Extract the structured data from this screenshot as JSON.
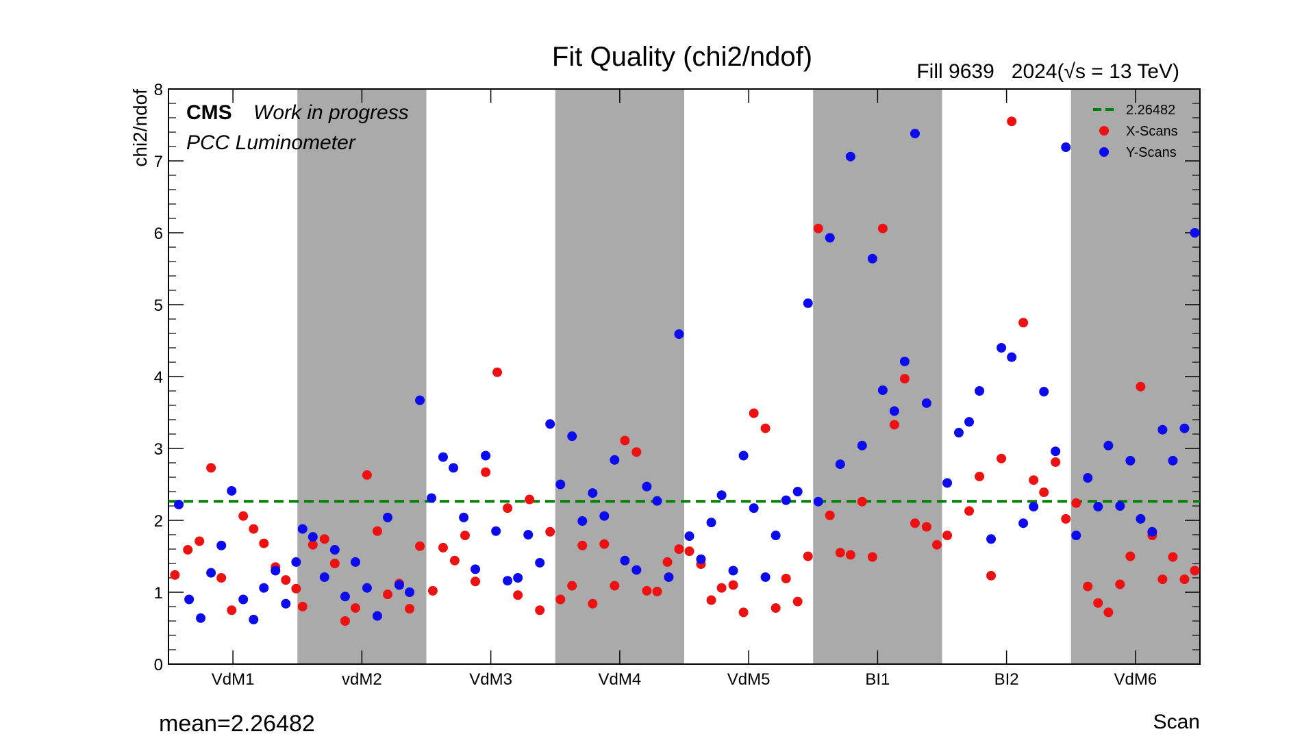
{
  "chart_data": {
    "type": "scatter",
    "title": "Fit Quality (chi2/ndof)",
    "top_right_label": "Fill 9639   2024(√s = 13 TeV)",
    "experiment_label": "CMS",
    "experiment_sublabel": "Work in progress",
    "detector_label": "PCC Luminometer",
    "xlabel": "Scan",
    "ylabel": "chi2/ndof",
    "ylim": [
      0,
      8
    ],
    "yticks": [
      0,
      1,
      2,
      3,
      4,
      5,
      6,
      7,
      8
    ],
    "xlim": [
      0,
      8
    ],
    "categories": [
      "VdM1",
      "vdM2",
      "VdM3",
      "VdM4",
      "VdM5",
      "BI1",
      "BI2",
      "VdM6"
    ],
    "shaded_categories": [
      1,
      3,
      5,
      7
    ],
    "mean_label": "mean=2.26482",
    "reference_line": {
      "name": "2.26482",
      "value": 2.26482,
      "style": "dashed",
      "color": "#008000"
    },
    "legend_position": "top-right",
    "grid": false,
    "series": [
      {
        "name": "X-Scans",
        "color": "#ee1111",
        "points": [
          [
            0.05,
            1.24
          ],
          [
            0.15,
            1.59
          ],
          [
            0.24,
            1.71
          ],
          [
            0.33,
            2.73
          ],
          [
            0.41,
            1.2
          ],
          [
            0.49,
            0.75
          ],
          [
            0.58,
            2.06
          ],
          [
            0.66,
            1.88
          ],
          [
            0.74,
            1.68
          ],
          [
            0.83,
            1.35
          ],
          [
            0.91,
            1.17
          ],
          [
            0.99,
            1.05
          ],
          [
            1.04,
            0.8
          ],
          [
            1.12,
            1.66
          ],
          [
            1.21,
            1.74
          ],
          [
            1.29,
            1.4
          ],
          [
            1.37,
            0.6
          ],
          [
            1.45,
            0.78
          ],
          [
            1.54,
            2.63
          ],
          [
            1.62,
            1.85
          ],
          [
            1.7,
            0.97
          ],
          [
            1.79,
            1.12
          ],
          [
            1.87,
            0.77
          ],
          [
            1.95,
            1.64
          ],
          [
            2.05,
            1.02
          ],
          [
            2.13,
            1.62
          ],
          [
            2.22,
            1.44
          ],
          [
            2.3,
            1.79
          ],
          [
            2.38,
            1.15
          ],
          [
            2.46,
            2.67
          ],
          [
            2.55,
            4.06
          ],
          [
            2.63,
            2.17
          ],
          [
            2.71,
            0.96
          ],
          [
            2.8,
            2.29
          ],
          [
            2.88,
            0.75
          ],
          [
            2.96,
            1.84
          ],
          [
            3.04,
            0.9
          ],
          [
            3.13,
            1.09
          ],
          [
            3.21,
            1.65
          ],
          [
            3.29,
            0.84
          ],
          [
            3.38,
            1.67
          ],
          [
            3.46,
            1.09
          ],
          [
            3.54,
            3.11
          ],
          [
            3.63,
            2.95
          ],
          [
            3.71,
            1.02
          ],
          [
            3.79,
            1.01
          ],
          [
            3.87,
            1.42
          ],
          [
            3.96,
            1.6
          ],
          [
            4.04,
            1.57
          ],
          [
            4.13,
            1.39
          ],
          [
            4.21,
            0.89
          ],
          [
            4.29,
            1.06
          ],
          [
            4.38,
            1.1
          ],
          [
            4.46,
            0.72
          ],
          [
            4.54,
            3.49
          ],
          [
            4.63,
            3.28
          ],
          [
            4.71,
            0.78
          ],
          [
            4.79,
            1.19
          ],
          [
            4.88,
            0.87
          ],
          [
            4.96,
            1.5
          ],
          [
            5.04,
            6.06
          ],
          [
            5.13,
            2.07
          ],
          [
            5.21,
            1.55
          ],
          [
            5.29,
            1.52
          ],
          [
            5.38,
            2.26
          ],
          [
            5.46,
            1.49
          ],
          [
            5.54,
            6.06
          ],
          [
            5.63,
            3.33
          ],
          [
            5.71,
            3.97
          ],
          [
            5.79,
            1.96
          ],
          [
            5.88,
            1.91
          ],
          [
            5.96,
            1.66
          ],
          [
            6.04,
            1.79
          ],
          [
            6.21,
            2.13
          ],
          [
            6.29,
            2.61
          ],
          [
            6.38,
            1.23
          ],
          [
            6.46,
            2.86
          ],
          [
            6.54,
            7.55
          ],
          [
            6.63,
            4.75
          ],
          [
            6.71,
            2.56
          ],
          [
            6.79,
            2.39
          ],
          [
            6.88,
            2.81
          ],
          [
            6.96,
            2.02
          ],
          [
            7.04,
            2.24
          ],
          [
            7.13,
            1.08
          ],
          [
            7.21,
            0.85
          ],
          [
            7.29,
            0.72
          ],
          [
            7.38,
            1.11
          ],
          [
            7.46,
            1.5
          ],
          [
            7.54,
            3.86
          ],
          [
            7.63,
            1.79
          ],
          [
            7.71,
            1.18
          ],
          [
            7.79,
            1.49
          ],
          [
            7.88,
            1.18
          ],
          [
            7.96,
            1.3
          ]
        ]
      },
      {
        "name": "Y-Scans",
        "color": "#0b0bee",
        "points": [
          [
            0.08,
            2.22
          ],
          [
            0.16,
            0.9
          ],
          [
            0.25,
            0.64
          ],
          [
            0.33,
            1.27
          ],
          [
            0.41,
            1.65
          ],
          [
            0.49,
            2.41
          ],
          [
            0.58,
            0.9
          ],
          [
            0.66,
            0.62
          ],
          [
            0.74,
            1.06
          ],
          [
            0.83,
            1.3
          ],
          [
            0.91,
            0.84
          ],
          [
            0.99,
            1.42
          ],
          [
            1.04,
            1.88
          ],
          [
            1.12,
            1.77
          ],
          [
            1.21,
            1.21
          ],
          [
            1.29,
            1.59
          ],
          [
            1.37,
            0.94
          ],
          [
            1.45,
            1.42
          ],
          [
            1.54,
            1.06
          ],
          [
            1.62,
            0.67
          ],
          [
            1.7,
            2.04
          ],
          [
            1.79,
            1.1
          ],
          [
            1.87,
            1.0
          ],
          [
            1.95,
            3.67
          ],
          [
            2.04,
            2.31
          ],
          [
            2.13,
            2.88
          ],
          [
            2.21,
            2.73
          ],
          [
            2.29,
            2.04
          ],
          [
            2.38,
            1.32
          ],
          [
            2.46,
            2.9
          ],
          [
            2.54,
            1.85
          ],
          [
            2.63,
            1.16
          ],
          [
            2.71,
            1.2
          ],
          [
            2.79,
            1.8
          ],
          [
            2.88,
            1.41
          ],
          [
            2.96,
            3.34
          ],
          [
            3.04,
            2.5
          ],
          [
            3.13,
            3.17
          ],
          [
            3.21,
            1.99
          ],
          [
            3.29,
            2.38
          ],
          [
            3.38,
            2.06
          ],
          [
            3.46,
            2.84
          ],
          [
            3.54,
            1.44
          ],
          [
            3.63,
            1.31
          ],
          [
            3.71,
            2.47
          ],
          [
            3.79,
            2.27
          ],
          [
            3.88,
            1.21
          ],
          [
            3.96,
            4.59
          ],
          [
            4.04,
            1.78
          ],
          [
            4.13,
            1.46
          ],
          [
            4.21,
            1.97
          ],
          [
            4.29,
            2.35
          ],
          [
            4.38,
            1.3
          ],
          [
            4.46,
            2.9
          ],
          [
            4.54,
            2.17
          ],
          [
            4.63,
            1.21
          ],
          [
            4.71,
            1.79
          ],
          [
            4.79,
            2.28
          ],
          [
            4.88,
            2.4
          ],
          [
            4.96,
            5.02
          ],
          [
            5.04,
            2.26
          ],
          [
            5.13,
            5.93
          ],
          [
            5.21,
            2.78
          ],
          [
            5.29,
            7.06
          ],
          [
            5.38,
            3.04
          ],
          [
            5.46,
            5.64
          ],
          [
            5.54,
            3.81
          ],
          [
            5.63,
            3.52
          ],
          [
            5.71,
            4.21
          ],
          [
            5.79,
            7.38
          ],
          [
            5.88,
            3.63
          ],
          [
            6.04,
            2.52
          ],
          [
            6.13,
            3.22
          ],
          [
            6.21,
            3.37
          ],
          [
            6.29,
            3.8
          ],
          [
            6.38,
            1.74
          ],
          [
            6.46,
            4.4
          ],
          [
            6.54,
            4.27
          ],
          [
            6.63,
            1.96
          ],
          [
            6.71,
            2.19
          ],
          [
            6.79,
            3.79
          ],
          [
            6.88,
            2.96
          ],
          [
            6.96,
            7.19
          ],
          [
            7.04,
            1.79
          ],
          [
            7.13,
            2.59
          ],
          [
            7.21,
            2.19
          ],
          [
            7.29,
            3.04
          ],
          [
            7.38,
            2.2
          ],
          [
            7.46,
            2.83
          ],
          [
            7.54,
            2.02
          ],
          [
            7.63,
            1.84
          ],
          [
            7.71,
            3.26
          ],
          [
            7.79,
            2.83
          ],
          [
            7.88,
            3.28
          ],
          [
            7.96,
            6.0
          ]
        ]
      }
    ]
  }
}
